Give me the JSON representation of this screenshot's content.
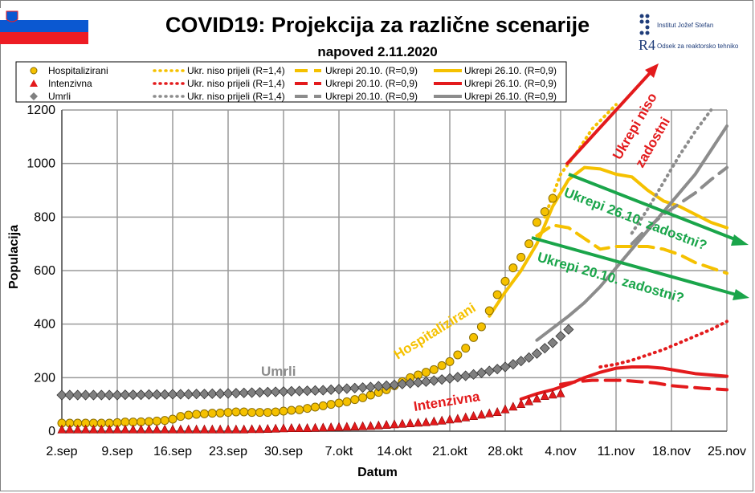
{
  "header": {
    "title": "COVID19: Projekcija za različne scenarije",
    "subtitle": "napoved 2.11.2020",
    "logo_ijs": "Institut Jožef Stefan",
    "logo_r4_mark": "R4",
    "logo_r4": "Odsek za reaktorsko tehniko"
  },
  "legend": {
    "rows": [
      {
        "marker_label": "Hospitalizirani",
        "marker": "circle",
        "color": "#f5c100",
        "s1": "Ukr. niso prijeli (R=1,4)",
        "s2": "Ukrepi 20.10. (R=0,9)",
        "s3": "Ukrepi 26.10. (R=0,9)"
      },
      {
        "marker_label": "Intenzivna",
        "marker": "triangle",
        "color": "#e31a1c",
        "s1": "Ukr. niso prijeli (R=1,4)",
        "s2": "Ukrepi 20.10. (R=0,9)",
        "s3": "Ukrepi 26.10. (R=0,9)"
      },
      {
        "marker_label": "Umrli",
        "marker": "diamond",
        "color": "#8c8c8c",
        "s1": "Ukr. niso prijeli (R=1,4)",
        "s2": "Ukrepi 20.10. (R=0,9)",
        "s3": "Ukrepi 26.10. (R=0,9)"
      }
    ]
  },
  "annotations": {
    "hosp": "Hospitalizirani",
    "umrli": "Umrli",
    "intenzivna": "Intenzivna",
    "niso_1": "Ukrepi niso",
    "niso_2": "zadostni",
    "z26": "Ukrepi 26.10. zadostni?",
    "z20": "Ukrepi 20.10. zadostni?"
  },
  "colors": {
    "hosp": "#f5c100",
    "icu": "#e31a1c",
    "died": "#8c8c8c",
    "green": "#1aa54a",
    "grid": "#9a9a9a"
  },
  "chart_data": {
    "type": "line",
    "xlabel": "Datum",
    "ylabel": "Populacija",
    "xlim": [
      0,
      84
    ],
    "ylim": [
      0,
      1200
    ],
    "y_ticks": [
      0,
      200,
      400,
      600,
      800,
      1000,
      1200
    ],
    "x_ticks": [
      {
        "x": 0,
        "label": "2.sep"
      },
      {
        "x": 7,
        "label": "9.sep"
      },
      {
        "x": 14,
        "label": "16.sep"
      },
      {
        "x": 21,
        "label": "23.sep"
      },
      {
        "x": 28,
        "label": "30.sep"
      },
      {
        "x": 35,
        "label": "7.okt"
      },
      {
        "x": 42,
        "label": "14.okt"
      },
      {
        "x": 49,
        "label": "21.okt"
      },
      {
        "x": 56,
        "label": "28.okt"
      },
      {
        "x": 63,
        "label": "4.nov"
      },
      {
        "x": 70,
        "label": "11.nov"
      },
      {
        "x": 77,
        "label": "18.nov"
      },
      {
        "x": 84,
        "label": "25.nov"
      }
    ],
    "grid": true,
    "series": [
      {
        "name": "Hospitalizirani",
        "kind": "observed",
        "values": [
          30,
          30,
          30,
          30,
          30,
          30,
          30,
          32,
          34,
          34,
          35,
          36,
          38,
          40,
          45,
          55,
          60,
          63,
          65,
          67,
          68,
          70,
          72,
          72,
          70,
          70,
          70,
          72,
          75,
          78,
          80,
          85,
          90,
          95,
          100,
          105,
          110,
          118,
          125,
          135,
          145,
          155,
          170,
          185,
          200,
          210,
          220,
          230,
          245,
          260,
          285,
          310,
          350,
          390,
          450,
          510,
          560,
          610,
          650,
          700,
          780,
          820,
          870
        ]
      },
      {
        "name": "Intenzivna",
        "kind": "observed",
        "values": [
          5,
          5,
          5,
          5,
          5,
          5,
          5,
          5,
          5,
          5,
          5,
          5,
          5,
          5,
          5,
          5,
          5,
          5,
          5,
          5,
          5,
          5,
          5,
          5,
          6,
          6,
          7,
          8,
          9,
          10,
          10,
          10,
          11,
          12,
          13,
          14,
          15,
          16,
          17,
          18,
          20,
          22,
          24,
          26,
          28,
          30,
          32,
          35,
          38,
          42,
          45,
          50,
          55,
          60,
          65,
          70,
          80,
          90,
          100,
          110,
          120,
          130,
          135,
          140
        ]
      },
      {
        "name": "Umrli",
        "kind": "observed",
        "values": [
          135,
          135,
          135,
          135,
          135,
          135,
          135,
          135,
          136,
          136,
          136,
          137,
          137,
          137,
          138,
          138,
          138,
          139,
          139,
          140,
          140,
          141,
          142,
          143,
          144,
          145,
          146,
          147,
          148,
          149,
          150,
          151,
          152,
          153,
          155,
          157,
          159,
          161,
          163,
          165,
          168,
          170,
          173,
          176,
          179,
          182,
          185,
          189,
          193,
          197,
          202,
          207,
          212,
          218,
          225,
          232,
          240,
          250,
          262,
          275,
          290,
          310,
          330,
          355,
          380
        ]
      },
      {
        "name": "Ukr. niso prijeli (R=1,4)",
        "group": "hosp",
        "style": "dot",
        "x": [
          61,
          63,
          65,
          67,
          70
        ],
        "values": [
          800,
          960,
          1040,
          1130,
          1220
        ]
      },
      {
        "name": "Ukrepi 20.10. (R=0,9)",
        "group": "hosp",
        "style": "dash",
        "x": [
          60,
          62,
          64,
          66,
          68,
          70,
          72,
          74,
          76,
          78,
          80,
          82,
          84
        ],
        "values": [
          730,
          770,
          760,
          720,
          680,
          690,
          690,
          690,
          680,
          660,
          630,
          610,
          590
        ]
      },
      {
        "name": "Ukrepi 26.10. (R=0,9)",
        "group": "hosp",
        "style": "solid",
        "x": [
          54,
          56,
          58,
          60,
          62,
          64,
          66,
          68,
          70,
          72,
          74,
          76,
          78,
          80,
          82,
          84
        ],
        "values": [
          430,
          520,
          600,
          700,
          840,
          940,
          985,
          980,
          960,
          950,
          900,
          860,
          840,
          810,
          780,
          760
        ]
      },
      {
        "name": "Ukr. niso prijeli (R=1,4)",
        "group": "icu",
        "style": "dot",
        "x": [
          68,
          70,
          72,
          74,
          76,
          78,
          80,
          82,
          84
        ],
        "values": [
          240,
          250,
          265,
          285,
          305,
          330,
          355,
          380,
          410
        ]
      },
      {
        "name": "Ukrepi 20.10. (R=0,9)",
        "group": "icu",
        "style": "dash",
        "x": [
          63,
          65,
          67,
          69,
          71,
          73,
          75,
          77,
          79,
          81,
          84
        ],
        "values": [
          175,
          185,
          190,
          190,
          190,
          185,
          180,
          170,
          165,
          160,
          155
        ]
      },
      {
        "name": "Ukrepi 26.10. (R=0,9)",
        "group": "icu",
        "style": "solid",
        "x": [
          58,
          60,
          62,
          64,
          66,
          68,
          70,
          72,
          74,
          76,
          78,
          80,
          82,
          84
        ],
        "values": [
          120,
          140,
          155,
          175,
          200,
          220,
          235,
          240,
          240,
          235,
          225,
          215,
          210,
          205
        ]
      },
      {
        "name": "Ukr. niso prijeli (R=1,4)",
        "group": "died",
        "style": "dot",
        "x": [
          72,
          74,
          76,
          78,
          80,
          82
        ],
        "values": [
          740,
          830,
          930,
          1030,
          1120,
          1200
        ]
      },
      {
        "name": "Ukrepi 20.10. (R=0,9)",
        "group": "died",
        "style": "dash",
        "x": [
          72,
          74,
          76,
          78,
          80,
          82,
          84
        ],
        "values": [
          700,
          760,
          810,
          850,
          890,
          940,
          985
        ]
      },
      {
        "name": "Ukrepi 26.10. (R=0,9)",
        "group": "died",
        "style": "solid",
        "x": [
          60,
          62,
          64,
          66,
          68,
          70,
          72,
          74,
          76,
          78,
          80,
          82,
          84
        ],
        "values": [
          340,
          385,
          430,
          480,
          540,
          610,
          680,
          750,
          820,
          890,
          960,
          1050,
          1140
        ]
      }
    ]
  }
}
